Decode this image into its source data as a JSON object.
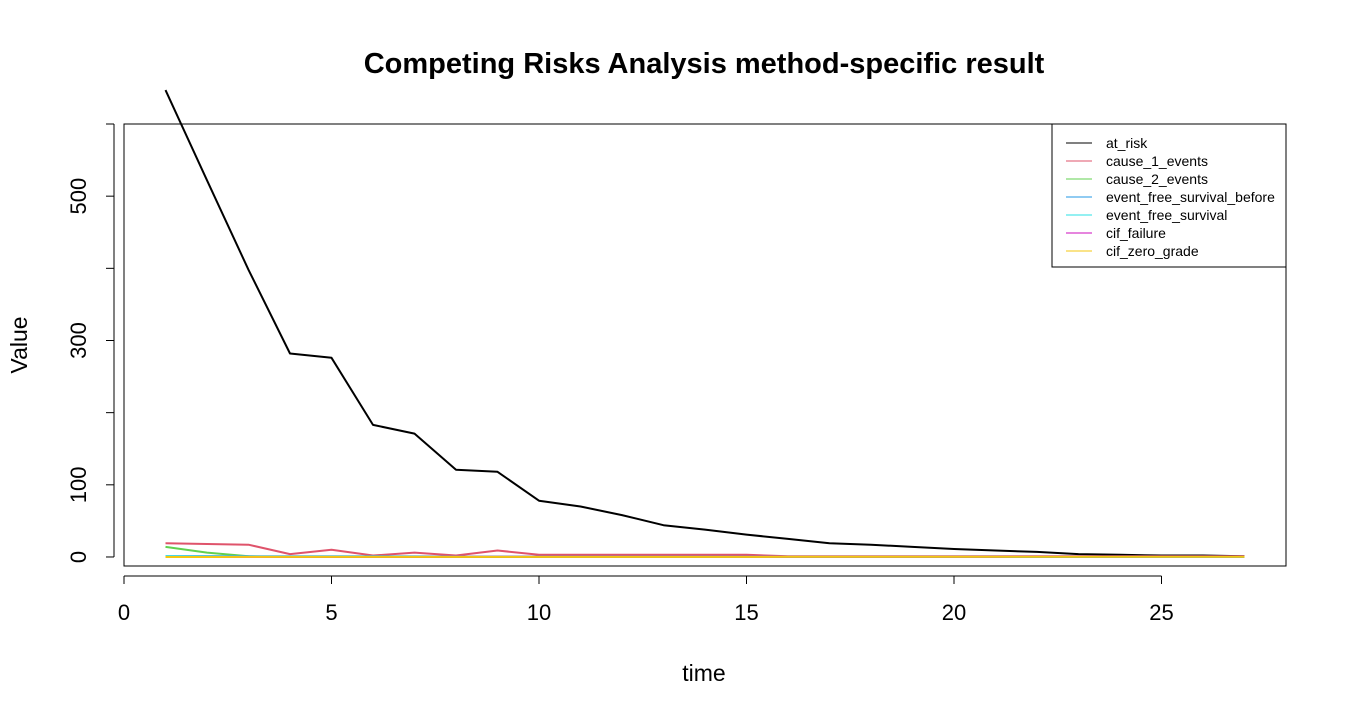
{
  "chart_data": {
    "type": "line",
    "title": "Competing Risks Analysis method-specific result",
    "xlabel": "time",
    "ylabel": "Value",
    "xlim": [
      0,
      28
    ],
    "ylim": [
      -12.5,
      600
    ],
    "xticks": [
      0,
      5,
      10,
      15,
      20,
      25
    ],
    "yticks": [
      0,
      100,
      200,
      300,
      400,
      500,
      600
    ],
    "ytick_labels": [
      "0",
      "100",
      "",
      "300",
      "",
      "500",
      ""
    ],
    "legend_position": "top-right",
    "x": [
      1,
      2,
      3,
      4,
      5,
      6,
      7,
      8,
      9,
      10,
      11,
      12,
      13,
      14,
      15,
      16,
      17,
      18,
      19,
      20,
      21,
      22,
      23,
      24,
      25,
      26,
      27
    ],
    "series": [
      {
        "name": "at_risk",
        "color": "#000000",
        "values": [
          647,
          522,
          398,
          282,
          276,
          183,
          171,
          121,
          118,
          78,
          70,
          58,
          44,
          38,
          31,
          25,
          19,
          17,
          14,
          11,
          9,
          7,
          4,
          3,
          2,
          2,
          1
        ]
      },
      {
        "name": "cause_1_events",
        "color": "#DF536B",
        "values": [
          19,
          18,
          17,
          4,
          10,
          2,
          6,
          2,
          9,
          3,
          3,
          3,
          3,
          3,
          3,
          1,
          1,
          1,
          1,
          1,
          1,
          1,
          1,
          1,
          1,
          1,
          1
        ]
      },
      {
        "name": "cause_2_events",
        "color": "#61D04F",
        "values": [
          14,
          6,
          1,
          0,
          0,
          0,
          0,
          0,
          0,
          0,
          0,
          0,
          0,
          0,
          0,
          0,
          0,
          0,
          0,
          0,
          0,
          0,
          0,
          0,
          0,
          0,
          0
        ]
      },
      {
        "name": "event_free_survival_before",
        "color": "#2297E6",
        "values": [
          1,
          0.95,
          0.9,
          0.87,
          0.83,
          0.78,
          0.74,
          0.7,
          0.66,
          0.62,
          0.59,
          0.56,
          0.53,
          0.5,
          0.47,
          0.45,
          0.43,
          0.41,
          0.39,
          0.37,
          0.35,
          0.33,
          0.31,
          0.29,
          0.27,
          0.25,
          0.23
        ]
      },
      {
        "name": "event_free_survival",
        "color": "#28E2E5",
        "values": [
          0.95,
          0.9,
          0.87,
          0.83,
          0.78,
          0.74,
          0.7,
          0.66,
          0.62,
          0.59,
          0.56,
          0.53,
          0.5,
          0.47,
          0.45,
          0.43,
          0.41,
          0.39,
          0.37,
          0.35,
          0.33,
          0.31,
          0.29,
          0.27,
          0.25,
          0.23,
          0.21
        ]
      },
      {
        "name": "cif_failure",
        "color": "#CD0BBC",
        "values": [
          0.03,
          0.06,
          0.08,
          0.1,
          0.12,
          0.14,
          0.16,
          0.18,
          0.2,
          0.22,
          0.24,
          0.26,
          0.28,
          0.3,
          0.32,
          0.34,
          0.36,
          0.38,
          0.4,
          0.42,
          0.44,
          0.46,
          0.48,
          0.5,
          0.52,
          0.54,
          0.56
        ]
      },
      {
        "name": "cif_zero_grade",
        "color": "#F5C710",
        "values": [
          0.02,
          0.04,
          0.05,
          0.06,
          0.07,
          0.08,
          0.09,
          0.1,
          0.11,
          0.12,
          0.13,
          0.14,
          0.15,
          0.16,
          0.17,
          0.18,
          0.19,
          0.2,
          0.21,
          0.22,
          0.23,
          0.24,
          0.25,
          0.26,
          0.27,
          0.28,
          0.29
        ]
      }
    ]
  }
}
